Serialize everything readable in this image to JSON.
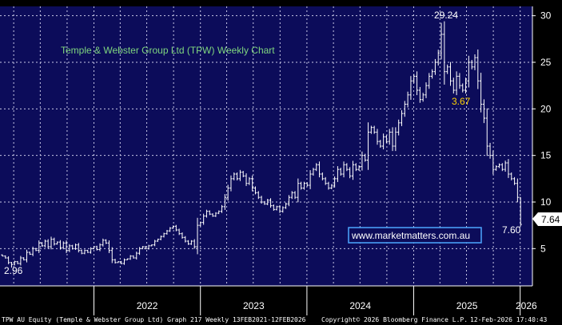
{
  "chart_data": {
    "type": "bar",
    "subtype": "weekly OHLC price bars",
    "title": "Temple & Webster Group Ltd (TPW) Weekly Chart",
    "watermark": "www.marketmatters.com.au",
    "y_axis": {
      "side": "right",
      "ticks": [
        5,
        10,
        15,
        20,
        25,
        30
      ],
      "range": [
        1,
        31
      ]
    },
    "x_axis": {
      "ticks": [
        "2022",
        "2023",
        "2024",
        "2025",
        "2026"
      ],
      "range": [
        "2021-02-13",
        "2026-02-12"
      ]
    },
    "grid": true,
    "annotations": {
      "high": "29.24",
      "low": "2.96",
      "last": "7.60",
      "last_price_tag": "7.64",
      "mid": "3.67"
    },
    "colors": {
      "background": "#0c0c5a",
      "bars": "#ffffff",
      "grid": "#c8c8e6",
      "title": "#7fd67f",
      "mid_annotation": "#ffd200",
      "watermark_border": "#4da6ff"
    },
    "weekly_close": [
      4.2,
      4.0,
      3.5,
      3.3,
      3.6,
      3.4,
      4.0,
      3.8,
      4.6,
      4.4,
      5.0,
      4.8,
      5.6,
      5.3,
      5.8,
      5.2,
      6.0,
      5.5,
      5.7,
      5.1,
      5.6,
      4.8,
      5.3,
      5.0,
      5.4,
      4.8,
      4.5,
      4.8,
      4.6,
      5.0,
      5.2,
      4.9,
      5.4,
      5.9,
      5.6,
      4.8,
      3.8,
      3.5,
      3.6,
      3.4,
      3.8,
      3.9,
      4.2,
      4.0,
      4.5,
      5.0,
      5.2,
      5.0,
      5.3,
      5.4,
      5.8,
      6.0,
      6.3,
      6.6,
      6.9,
      7.2,
      7.4,
      7.0,
      6.6,
      6.2,
      5.8,
      5.5,
      5.8,
      5.2,
      7.5,
      7.8,
      8.5,
      9.0,
      8.7,
      8.5,
      8.8,
      9.0,
      9.5,
      10.5,
      11.5,
      12.5,
      13.0,
      12.5,
      13.2,
      12.8,
      12.0,
      12.5,
      11.5,
      11.0,
      10.5,
      10.0,
      9.8,
      10.2,
      9.6,
      9.2,
      9.5,
      9.0,
      9.4,
      9.8,
      10.5,
      11.0,
      10.5,
      12.0,
      11.5,
      12.0,
      11.8,
      13.0,
      13.5,
      14.0,
      13.0,
      12.5,
      12.0,
      11.5,
      11.8,
      12.5,
      13.5,
      13.0,
      14.0,
      13.5,
      12.8,
      14.0,
      13.5,
      13.8,
      15.0,
      14.5,
      17.5,
      18.0,
      17.5,
      16.5,
      16.0,
      17.0,
      16.5,
      17.5,
      16.0,
      17.5,
      18.5,
      19.5,
      20.5,
      21.5,
      23.0,
      23.5,
      22.0,
      21.0,
      21.5,
      22.5,
      23.5,
      24.0,
      25.0,
      26.0,
      28.0,
      24.0,
      24.5,
      23.0,
      22.0,
      23.5,
      22.5,
      22.0,
      23.0,
      25.0,
      24.5,
      25.5,
      23.0,
      20.5,
      19.0,
      16.0,
      15.0,
      13.5,
      13.8,
      14.0,
      13.5,
      14.2,
      13.0,
      12.5,
      12.0,
      10.5,
      7.6
    ]
  },
  "footer": {
    "left": "TPW AU Equity (Temple & Webster Group Ltd) Graph 217 Weekly 13FEB2021-12FEB2026",
    "center": "Copyright© 2026 Bloomberg Finance L.P.",
    "right": "12-Feb-2026 17:40:43"
  }
}
